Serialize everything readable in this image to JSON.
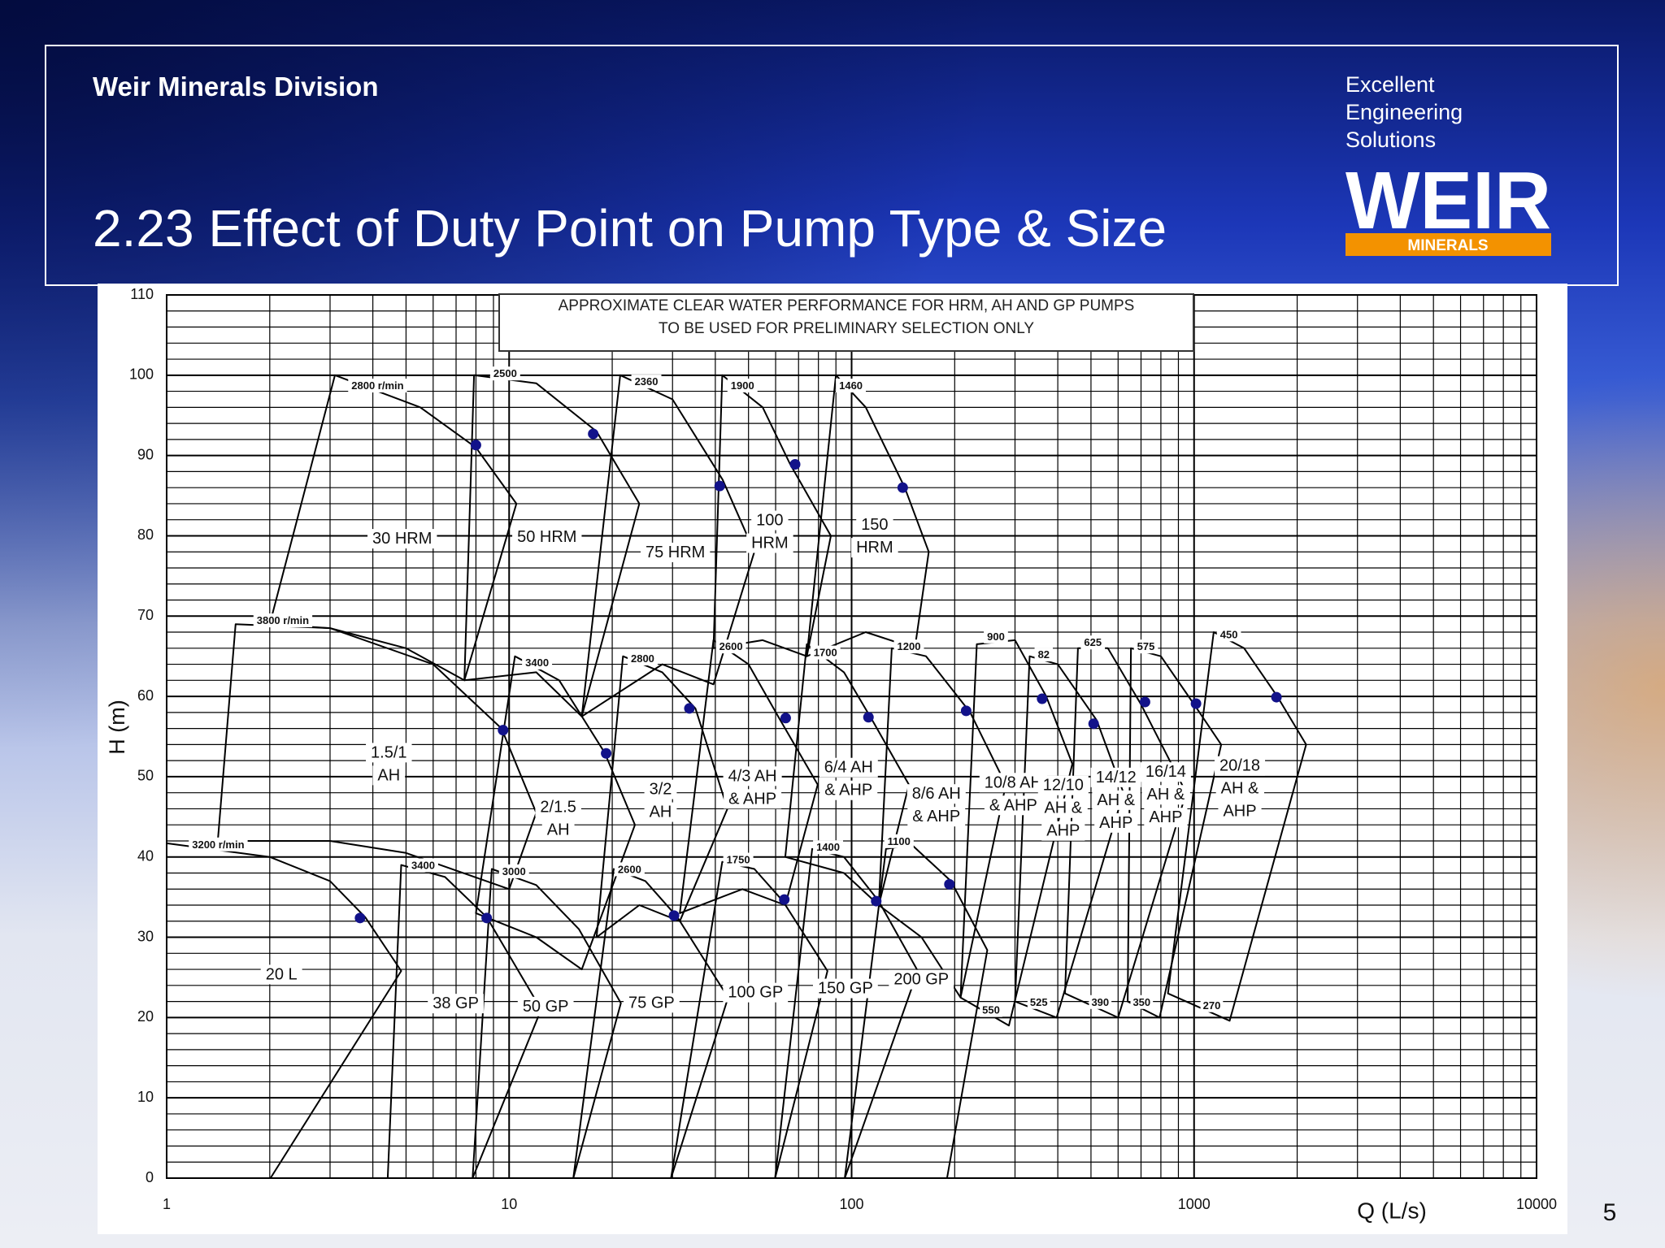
{
  "header": {
    "division": "Weir Minerals Division",
    "title": "2.23 Effect of Duty Point on Pump Type & Size",
    "tagline": [
      "Excellent",
      "Engineering",
      "Solutions"
    ],
    "logo": {
      "name": "WEIR",
      "subtitle": "MINERALS"
    }
  },
  "page_number": 5,
  "chart_data": {
    "type": "envelope",
    "note": [
      "APPROXIMATE CLEAR WATER PERFORMANCE FOR HRM, AH AND GP PUMPS",
      "TO BE USED FOR PRELIMINARY SELECTION ONLY"
    ],
    "x_label": "Q (L/s)",
    "y_label": "H (m)",
    "xscale": "log",
    "xlim": [
      1,
      10000
    ],
    "xticks": [
      1,
      10,
      100,
      1000,
      10000
    ],
    "ylim": [
      0,
      110
    ],
    "yticks": [
      0,
      10,
      20,
      30,
      40,
      50,
      60,
      70,
      80,
      90,
      100,
      110
    ],
    "minor_xgrid": [
      2,
      3,
      4,
      5,
      6,
      7,
      8,
      9,
      20,
      30,
      40,
      50,
      60,
      70,
      80,
      90,
      200,
      300,
      400,
      500,
      600,
      700,
      800,
      900,
      2000,
      3000,
      4000,
      5000,
      6000,
      7000,
      8000,
      9000
    ],
    "minor_ygrid": [
      2,
      4,
      6,
      8,
      12,
      14,
      16,
      18,
      22,
      24,
      26,
      28,
      32,
      34,
      36,
      38,
      42,
      44,
      46,
      48,
      52,
      54,
      56,
      58,
      62,
      64,
      66,
      68,
      72,
      74,
      76,
      78,
      82,
      84,
      86,
      88,
      92,
      94,
      96,
      98,
      102,
      104,
      106,
      108
    ],
    "grid": true,
    "line_color": "#000000",
    "point_color": "#12128a",
    "series": [
      {
        "label": [
          "30 HRM"
        ],
        "speed": "2800 r/min",
        "x": [
          2,
          3.1,
          5.5,
          8,
          10.5,
          7.4,
          5,
          3
        ],
        "y": [
          69,
          100,
          96,
          91,
          84,
          62,
          66,
          68.5
        ],
        "point": [
          8.0,
          91.3
        ]
      },
      {
        "label": [
          "50 HRM"
        ],
        "speed": "2500",
        "x": [
          7.4,
          7.9,
          12,
          18,
          24,
          16.3,
          12
        ],
        "y": [
          62,
          100,
          99,
          93,
          84,
          57.5,
          63
        ],
        "point": [
          17.6,
          92.7
        ]
      },
      {
        "label": [
          "75 HRM"
        ],
        "speed": "2360",
        "x": [
          16.3,
          21.1,
          30,
          42,
          52,
          39.5,
          28
        ],
        "y": [
          57.5,
          100,
          97,
          87,
          78,
          61.5,
          64
        ],
        "point": [
          41.2,
          86.2
        ]
      },
      {
        "label": [
          "100",
          "HRM"
        ],
        "speed": "1900",
        "x": [
          39.5,
          41.9,
          55,
          66,
          87,
          74,
          55
        ],
        "y": [
          66,
          100,
          96,
          89,
          80,
          65,
          67
        ],
        "point": [
          68.4,
          88.9
        ]
      },
      {
        "label": [
          "150",
          "HRM"
        ],
        "speed": "1460",
        "x": [
          74,
          90,
          110,
          143,
          168,
          153,
          110
        ],
        "y": [
          65,
          100,
          96,
          86,
          78,
          66,
          68
        ],
        "point": [
          141,
          86
        ]
      },
      {
        "label": [
          "1.5/1",
          "AH"
        ],
        "speed": "3800 r/min",
        "x": [
          1.41,
          1.59,
          3,
          6,
          9.5,
          12,
          10,
          5,
          3
        ],
        "y": [
          42,
          69,
          68.5,
          64,
          56,
          45.5,
          36,
          40.5,
          42
        ],
        "point": [
          9.6,
          55.8
        ]
      },
      {
        "label": [
          "2/1.5",
          "AH"
        ],
        "speed": "3400",
        "x": [
          8,
          10.4,
          14,
          19,
          23.3,
          16.3,
          12
        ],
        "y": [
          33,
          65,
          62,
          53,
          44,
          26,
          30
        ],
        "point": [
          19.2,
          52.9
        ]
      },
      {
        "label": [
          "3/2",
          "AH"
        ],
        "speed": "2800",
        "x": [
          18,
          21.5,
          28,
          35,
          43.4,
          31.5,
          24
        ],
        "y": [
          30,
          65,
          63,
          58.5,
          46,
          32,
          34
        ],
        "point": [
          33.6,
          58.5
        ]
      },
      {
        "label": [
          "4/3 AH",
          "& AHP"
        ],
        "speed": "2600",
        "x": [
          31.5,
          39.5,
          50,
          62,
          79.6,
          64,
          48
        ],
        "y": [
          33,
          67,
          64,
          57,
          49,
          34,
          36
        ],
        "point": [
          64.2,
          57.3
        ]
      },
      {
        "label": [
          "6/4 AH",
          "& AHP"
        ],
        "speed": "1700",
        "x": [
          64,
          74,
          95,
          115,
          147,
          120,
          95
        ],
        "y": [
          40,
          66.5,
          63,
          57,
          49,
          34,
          38
        ],
        "point": [
          112,
          57.4
        ]
      },
      {
        "label": [
          "8/6 AH",
          "& AHP"
        ],
        "speed": "1200",
        "x": [
          120,
          131,
          165,
          222,
          282,
          208,
          160
        ],
        "y": [
          34,
          66,
          65,
          58,
          49,
          22.5,
          30
        ],
        "point": [
          216,
          58.2
        ]
      },
      {
        "label": [
          "10/8 AH",
          "& AHP"
        ],
        "speed": "900",
        "min_speed": "550",
        "x": [
          208,
          232,
          300,
          370,
          441,
          288
        ],
        "y": [
          22.5,
          66.5,
          67,
          60,
          51.6,
          19
        ],
        "point": [
          360,
          59.7
        ]
      },
      {
        "label": [
          "12/10",
          "AH &",
          "AHP"
        ],
        "speed": "82",
        "min_speed": "525",
        "x": [
          300,
          331,
          400,
          520,
          622,
          397
        ],
        "y": [
          22,
          65,
          64,
          57,
          48,
          20
        ],
        "point": [
          509,
          56.6
        ]
      },
      {
        "label": [
          "14/12",
          "AH &",
          "AHP"
        ],
        "speed": "625",
        "min_speed": "390",
        "x": [
          420,
          458,
          560,
          700,
          948,
          600
        ],
        "y": [
          23,
          66,
          66,
          59,
          48,
          20
        ],
        "point": [
          719,
          59.3
        ]
      },
      {
        "label": [
          "16/14",
          "AH &",
          "AHP"
        ],
        "speed": "575",
        "min_speed": "350",
        "x": [
          640,
          654,
          800,
          1000,
          1200,
          793
        ],
        "y": [
          22,
          66,
          65,
          59,
          54,
          20
        ],
        "point": [
          1013,
          59.1
        ]
      },
      {
        "label": [
          "20/18",
          "AH &",
          "AHP"
        ],
        "speed": "450",
        "min_speed": "270",
        "x": [
          839,
          1141,
          1400,
          1750,
          2125,
          1270
        ],
        "y": [
          23,
          68,
          66,
          60,
          54,
          19.6
        ],
        "point": [
          1740,
          59.9
        ]
      },
      {
        "label": [
          "20 L"
        ],
        "speed": "3200 r/min",
        "x": [
          1,
          1,
          2,
          3,
          3.8,
          4.84,
          2.01
        ],
        "y": [
          0,
          41.7,
          40,
          37,
          32.5,
          25.8,
          0
        ],
        "point": [
          3.67,
          32.4
        ]
      },
      {
        "label": [
          "38 GP"
        ],
        "speed": "3400",
        "x": [
          4.42,
          4.84,
          6.5,
          8.6,
          12.4,
          7.82
        ],
        "y": [
          0,
          39,
          37.5,
          32.5,
          21,
          0
        ],
        "point": [
          8.6,
          32.4
        ]
      },
      {
        "label": [
          "50 GP"
        ],
        "speed": "3000",
        "x": [
          7.82,
          8.9,
          12,
          16,
          21.2,
          15.4
        ],
        "y": [
          0,
          38.5,
          36.5,
          31,
          21.8,
          0
        ]
      },
      {
        "label": [
          "75 GP"
        ],
        "speed": "2600",
        "x": [
          15.4,
          20.2,
          25,
          31,
          43.6,
          29.7
        ],
        "y": [
          0,
          38.5,
          37,
          32.5,
          22.5,
          0
        ],
        "point": [
          30.3,
          32.7
        ]
      },
      {
        "label": [
          "100 GP"
        ],
        "speed": "1750",
        "x": [
          29.7,
          41.9,
          52,
          63,
          85,
          59.8
        ],
        "y": [
          0,
          39.4,
          38.5,
          34.5,
          25.8,
          0
        ],
        "point": [
          63.6,
          34.7
        ]
      },
      {
        "label": [
          "150 GP"
        ],
        "speed": "1400",
        "x": [
          59.8,
          76.7,
          95,
          120,
          156,
          95.5
        ],
        "y": [
          0,
          41,
          40,
          34.5,
          25.8,
          0
        ],
        "point": [
          118,
          34.5
        ]
      },
      {
        "label": [
          "200 GP"
        ],
        "speed": "1100",
        "x": [
          95.5,
          126,
          150,
          195,
          249,
          190
        ],
        "y": [
          0,
          41,
          41.5,
          37,
          28.4,
          0
        ],
        "point": [
          193,
          36.6
        ]
      }
    ]
  }
}
